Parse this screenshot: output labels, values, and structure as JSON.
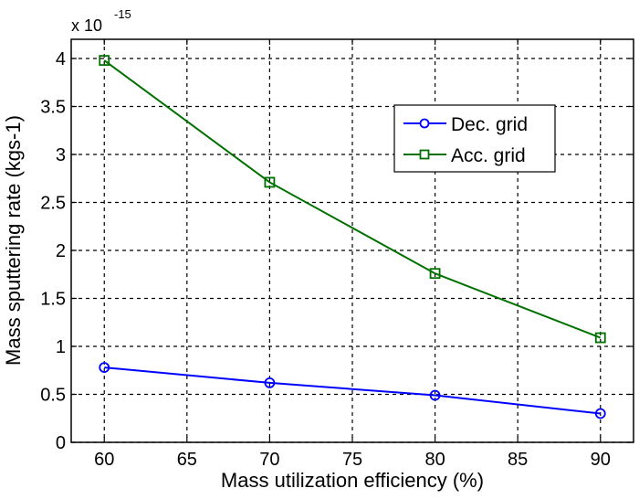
{
  "chart_data": {
    "type": "line",
    "title": "",
    "xlabel": "Mass utilization efficiency (%)",
    "ylabel": "Mass sputtering rate (kgs-1)",
    "y_multiplier_label": {
      "base": "x 10",
      "exponent": "-15"
    },
    "xlim": [
      58,
      92
    ],
    "ylim": [
      0,
      4.2
    ],
    "x_ticks": [
      60,
      65,
      70,
      75,
      80,
      85,
      90
    ],
    "x_tick_labels": [
      "60",
      "65",
      "70",
      "75",
      "80",
      "85",
      "90"
    ],
    "y_ticks": [
      0,
      0.5,
      1,
      1.5,
      2,
      2.5,
      3,
      3.5,
      4
    ],
    "y_tick_labels": [
      "0",
      "0.5",
      "1",
      "1.5",
      "2",
      "2.5",
      "3",
      "3.5",
      "4"
    ],
    "grid": true,
    "legend_position": "upper-right",
    "x": [
      60,
      70,
      80,
      90
    ],
    "series": [
      {
        "name": "Dec. grid",
        "values": [
          0.78,
          0.62,
          0.49,
          0.3
        ],
        "color": "#0000ff",
        "marker": "circle"
      },
      {
        "name": "Acc. grid",
        "values": [
          3.98,
          2.71,
          1.76,
          1.09
        ],
        "color": "#007000",
        "marker": "square"
      }
    ]
  }
}
